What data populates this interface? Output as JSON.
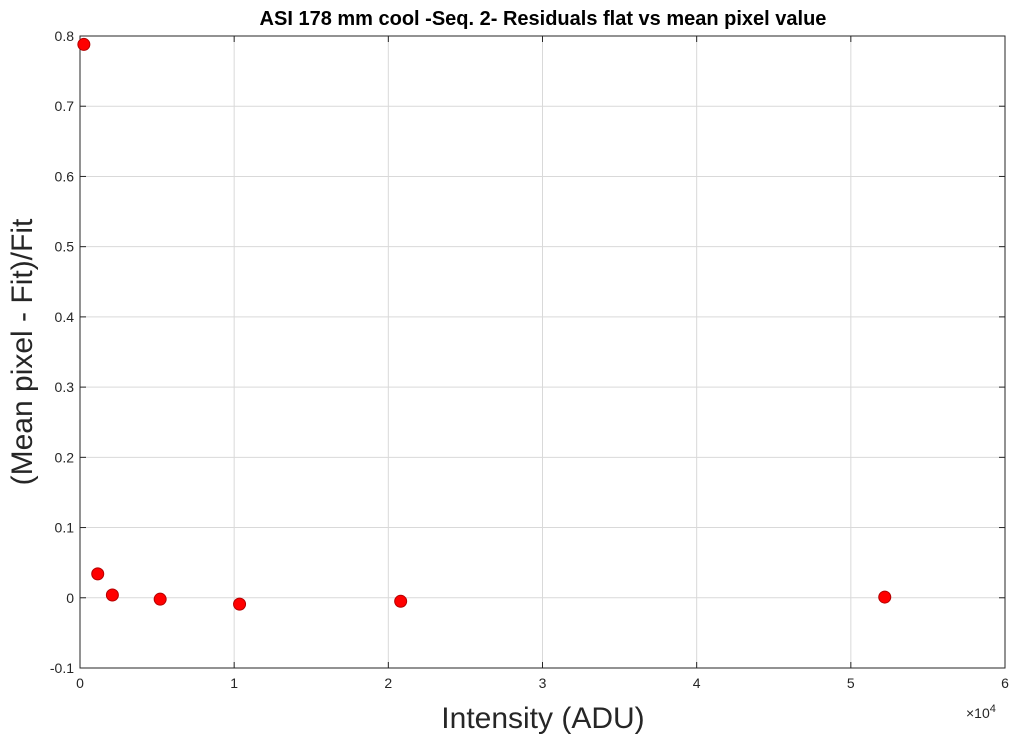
{
  "chart_data": {
    "type": "scatter",
    "title": "ASI 178 mm cool -Seq. 2- Residuals flat vs mean pixel value",
    "xlabel": "Intensity (ADU)",
    "ylabel": "(Mean pixel - Fit)/Fit",
    "x_exponent_label": "×10",
    "x_exponent_power": "4",
    "xlim": [
      0,
      60000
    ],
    "ylim": [
      -0.1,
      0.8
    ],
    "x_ticks": [
      0,
      10000,
      20000,
      30000,
      40000,
      50000,
      60000
    ],
    "x_tick_labels": [
      "0",
      "1",
      "2",
      "3",
      "4",
      "5",
      "6"
    ],
    "y_ticks": [
      -0.1,
      0,
      0.1,
      0.2,
      0.3,
      0.4,
      0.5,
      0.6,
      0.7,
      0.8
    ],
    "y_tick_labels": [
      "-0.1",
      "0",
      "0.1",
      "0.2",
      "0.3",
      "0.4",
      "0.5",
      "0.6",
      "0.7",
      "0.8"
    ],
    "grid": true,
    "marker_color": "#ff0000",
    "points": [
      {
        "x": 250,
        "y": 0.788
      },
      {
        "x": 1150,
        "y": 0.034
      },
      {
        "x": 2100,
        "y": 0.004
      },
      {
        "x": 5200,
        "y": -0.002
      },
      {
        "x": 10350,
        "y": -0.009
      },
      {
        "x": 20800,
        "y": -0.005
      },
      {
        "x": 52200,
        "y": 0.001
      }
    ]
  }
}
